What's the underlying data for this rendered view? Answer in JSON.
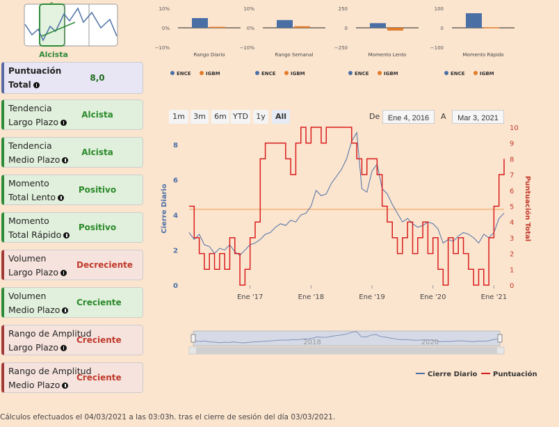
{
  "signal": {
    "label": "Alcista"
  },
  "cards": [
    {
      "lines": [
        "Puntuación",
        "Total"
      ],
      "value": "8,0",
      "status": "neutral"
    },
    {
      "lines": [
        "Tendencia",
        "Largo Plazo"
      ],
      "value": "Alcista",
      "status": "up"
    },
    {
      "lines": [
        "Tendencia",
        "Medio Plazo"
      ],
      "value": "Alcista",
      "status": "up"
    },
    {
      "lines": [
        "Momento",
        "Total Lento"
      ],
      "value": "Positivo",
      "status": "up"
    },
    {
      "lines": [
        "Momento",
        "Total Rápido"
      ],
      "value": "Positivo",
      "status": "up"
    },
    {
      "lines": [
        "Volumen",
        "Largo Plazo"
      ],
      "value": "Decreciente",
      "status": "down"
    },
    {
      "lines": [
        "Volumen",
        "Medio Plazo"
      ],
      "value": "Creciente",
      "status": "up"
    },
    {
      "lines": [
        "Rango de Amplitud",
        "Largo Plazo"
      ],
      "value": "Creciente",
      "status": "down"
    },
    {
      "lines": [
        "Rango de Amplitud",
        "Medio Plazo"
      ],
      "value": "Creciente",
      "status": "down"
    }
  ],
  "range_buttons": {
    "buttons": [
      "1m",
      "3m",
      "6m",
      "YTD",
      "1y",
      "All"
    ],
    "selected": 5
  },
  "date_range": {
    "from_label": "De",
    "from": "Ene 4, 2016",
    "to_label": "A",
    "to": "Mar 3, 2021"
  },
  "chart_data": [
    {
      "type": "bar",
      "x_label": "Rango Diario",
      "categories": [
        null
      ],
      "series": [
        {
          "name": "ENCE",
          "color": "#4a6fa5",
          "values": [
            5
          ]
        },
        {
          "name": "IGBM",
          "color": "#e07b2a",
          "values": [
            0.5
          ]
        }
      ],
      "ylim": [
        -10,
        10
      ],
      "yticks": [
        {
          "value": 10,
          "label": "10%"
        },
        {
          "value": 0,
          "label": "0%"
        },
        {
          "value": -10,
          "label": "−10%"
        }
      ]
    },
    {
      "type": "bar",
      "x_label": "Rango Semanal",
      "categories": [
        null
      ],
      "series": [
        {
          "name": "ENCE",
          "color": "#4a6fa5",
          "values": [
            4
          ]
        },
        {
          "name": "IGBM",
          "color": "#e07b2a",
          "values": [
            0.8
          ]
        }
      ],
      "ylim": [
        -10,
        10
      ],
      "yticks": [
        {
          "value": 10,
          "label": "10%"
        },
        {
          "value": 0,
          "label": "0%"
        },
        {
          "value": -10,
          "label": "−10%"
        }
      ]
    },
    {
      "type": "bar",
      "x_label": "Momento Lento",
      "categories": [
        null
      ],
      "series": [
        {
          "name": "ENCE",
          "color": "#4a6fa5",
          "values": [
            60
          ]
        },
        {
          "name": "IGBM",
          "color": "#e07b2a",
          "values": [
            -35
          ]
        }
      ],
      "ylim": [
        -250,
        250
      ],
      "yticks": [
        250,
        0,
        {
          "value": -250,
          "label": "−250"
        }
      ]
    },
    {
      "type": "bar",
      "x_label": "Momento Rápido",
      "categories": [
        null
      ],
      "series": [
        {
          "name": "ENCE",
          "color": "#4a6fa5",
          "values": [
            75
          ]
        },
        {
          "name": "IGBM",
          "color": "#e07b2a",
          "values": [
            3
          ]
        }
      ],
      "ylim": [
        -100,
        100
      ],
      "yticks": [
        100,
        0,
        {
          "value": -100,
          "label": "−100"
        }
      ]
    },
    {
      "type": "line",
      "y_label": "Cierre Diario",
      "y2_label": "Puntuación Total",
      "x": [
        "2016-01",
        "2016-02",
        "2016-03",
        "2016-04",
        "2016-05",
        "2016-06",
        "2016-07",
        "2016-08",
        "2016-09",
        "2016-10",
        "2016-11",
        "2016-12",
        "2017-01",
        "2017-02",
        "2017-03",
        "2017-04",
        "2017-05",
        "2017-06",
        "2017-07",
        "2017-08",
        "2017-09",
        "2017-10",
        "2017-11",
        "2017-12",
        "2018-01",
        "2018-02",
        "2018-03",
        "2018-04",
        "2018-05",
        "2018-06",
        "2018-07",
        "2018-08",
        "2018-09",
        "2018-10",
        "2018-11",
        "2018-12",
        "2019-01",
        "2019-02",
        "2019-03",
        "2019-04",
        "2019-05",
        "2019-06",
        "2019-07",
        "2019-08",
        "2019-09",
        "2019-10",
        "2019-11",
        "2019-12",
        "2020-01",
        "2020-02",
        "2020-03",
        "2020-04",
        "2020-05",
        "2020-06",
        "2020-07",
        "2020-08",
        "2020-09",
        "2020-10",
        "2020-11",
        "2020-12",
        "2021-01",
        "2021-02",
        "2021-03"
      ],
      "series": [
        {
          "name": "Cierre Diario",
          "color": "#4a6fa5",
          "axis": "y",
          "values": [
            3.0,
            2.6,
            2.9,
            2.3,
            2.2,
            1.8,
            2.1,
            2.0,
            2.3,
            1.9,
            1.7,
            2.0,
            2.3,
            2.4,
            2.6,
            2.9,
            3.0,
            3.3,
            3.5,
            3.4,
            3.7,
            3.6,
            4.0,
            4.1,
            4.5,
            5.4,
            5.1,
            5.2,
            5.8,
            6.2,
            6.6,
            7.2,
            8.2,
            8.7,
            5.5,
            5.3,
            6.5,
            6.9,
            5.5,
            5.2,
            4.6,
            4.1,
            3.6,
            3.8,
            3.5,
            3.3,
            3.4,
            3.6,
            3.5,
            3.2,
            2.4,
            2.6,
            2.5,
            2.8,
            3.0,
            2.9,
            2.7,
            2.4,
            2.9,
            2.7,
            3.0,
            3.8,
            4.1
          ]
        },
        {
          "name": "Puntuación",
          "color": "#d81b1b",
          "axis": "y2",
          "step": true,
          "values": [
            5,
            3,
            2,
            1,
            2,
            1,
            2,
            1,
            3,
            2,
            0,
            1,
            3,
            4,
            8,
            9,
            9,
            9,
            9,
            8,
            7,
            9,
            10,
            9,
            10,
            10,
            9,
            10,
            10,
            10,
            10,
            10,
            9,
            8,
            7,
            8,
            8,
            7,
            5,
            4,
            3,
            2,
            3,
            4,
            2,
            3,
            4,
            2,
            3,
            1,
            0,
            3,
            2,
            3,
            2,
            1,
            0,
            1,
            0,
            3,
            5,
            7,
            8
          ]
        }
      ],
      "xlim": [
        "2016-01",
        "2021-03"
      ],
      "xticks": [
        {
          "value": "2017-01",
          "label": "Ene '17"
        },
        {
          "value": "2018-01",
          "label": "Ene '18"
        },
        {
          "value": "2019-01",
          "label": "Ene '19"
        },
        {
          "value": "2020-01",
          "label": "Ene '20"
        },
        {
          "value": "2021-01",
          "label": "Ene '21"
        }
      ],
      "ylim": [
        0,
        9
      ],
      "yticks": [
        0,
        2,
        4,
        6,
        8
      ],
      "y2lim": [
        0,
        10
      ],
      "y2ticks": [
        0,
        1,
        2,
        3,
        4,
        5,
        6,
        7,
        8,
        9,
        10
      ],
      "plot_line": {
        "value": 4.8,
        "axis": "y2",
        "color": "#f0b27a"
      },
      "navigator_ticks": [
        {
          "value": "2018-01",
          "label": "2018"
        },
        {
          "value": "2020-01",
          "label": "2020"
        }
      ]
    }
  ],
  "footer": "Cálculos efectuados el 04/03/2021 a las 03:03h. tras el cierre de sesión del día 03/03/2021."
}
